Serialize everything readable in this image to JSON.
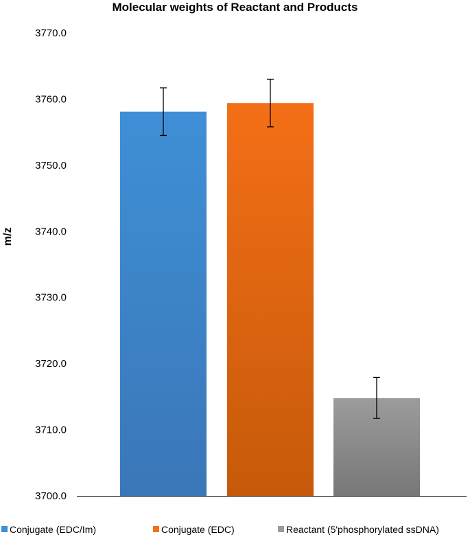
{
  "chart_data": {
    "type": "bar",
    "title": "Molecular weights of Reactant and Products",
    "ylabel": "m/z",
    "xlabel": "",
    "ylim": [
      3700,
      3770
    ],
    "yticks": [
      "3700.0",
      "3710.0",
      "3720.0",
      "3730.0",
      "3740.0",
      "3750.0",
      "3760.0",
      "3770.0"
    ],
    "grid": false,
    "legend_position": "bottom",
    "categories": [
      "Conjugate (EDC/Im)",
      "Conjugate (EDC)",
      "Reactant (5'phosphorylated ssDNA)"
    ],
    "values": [
      3758.1,
      3759.4,
      3714.8
    ],
    "error": [
      3.6,
      3.6,
      3.1
    ],
    "colors": [
      "#3f8fd6",
      "#f46f17",
      "#9c9c9c"
    ],
    "colors_dark": [
      "#3a77b8",
      "#c65a0a",
      "#777777"
    ]
  }
}
